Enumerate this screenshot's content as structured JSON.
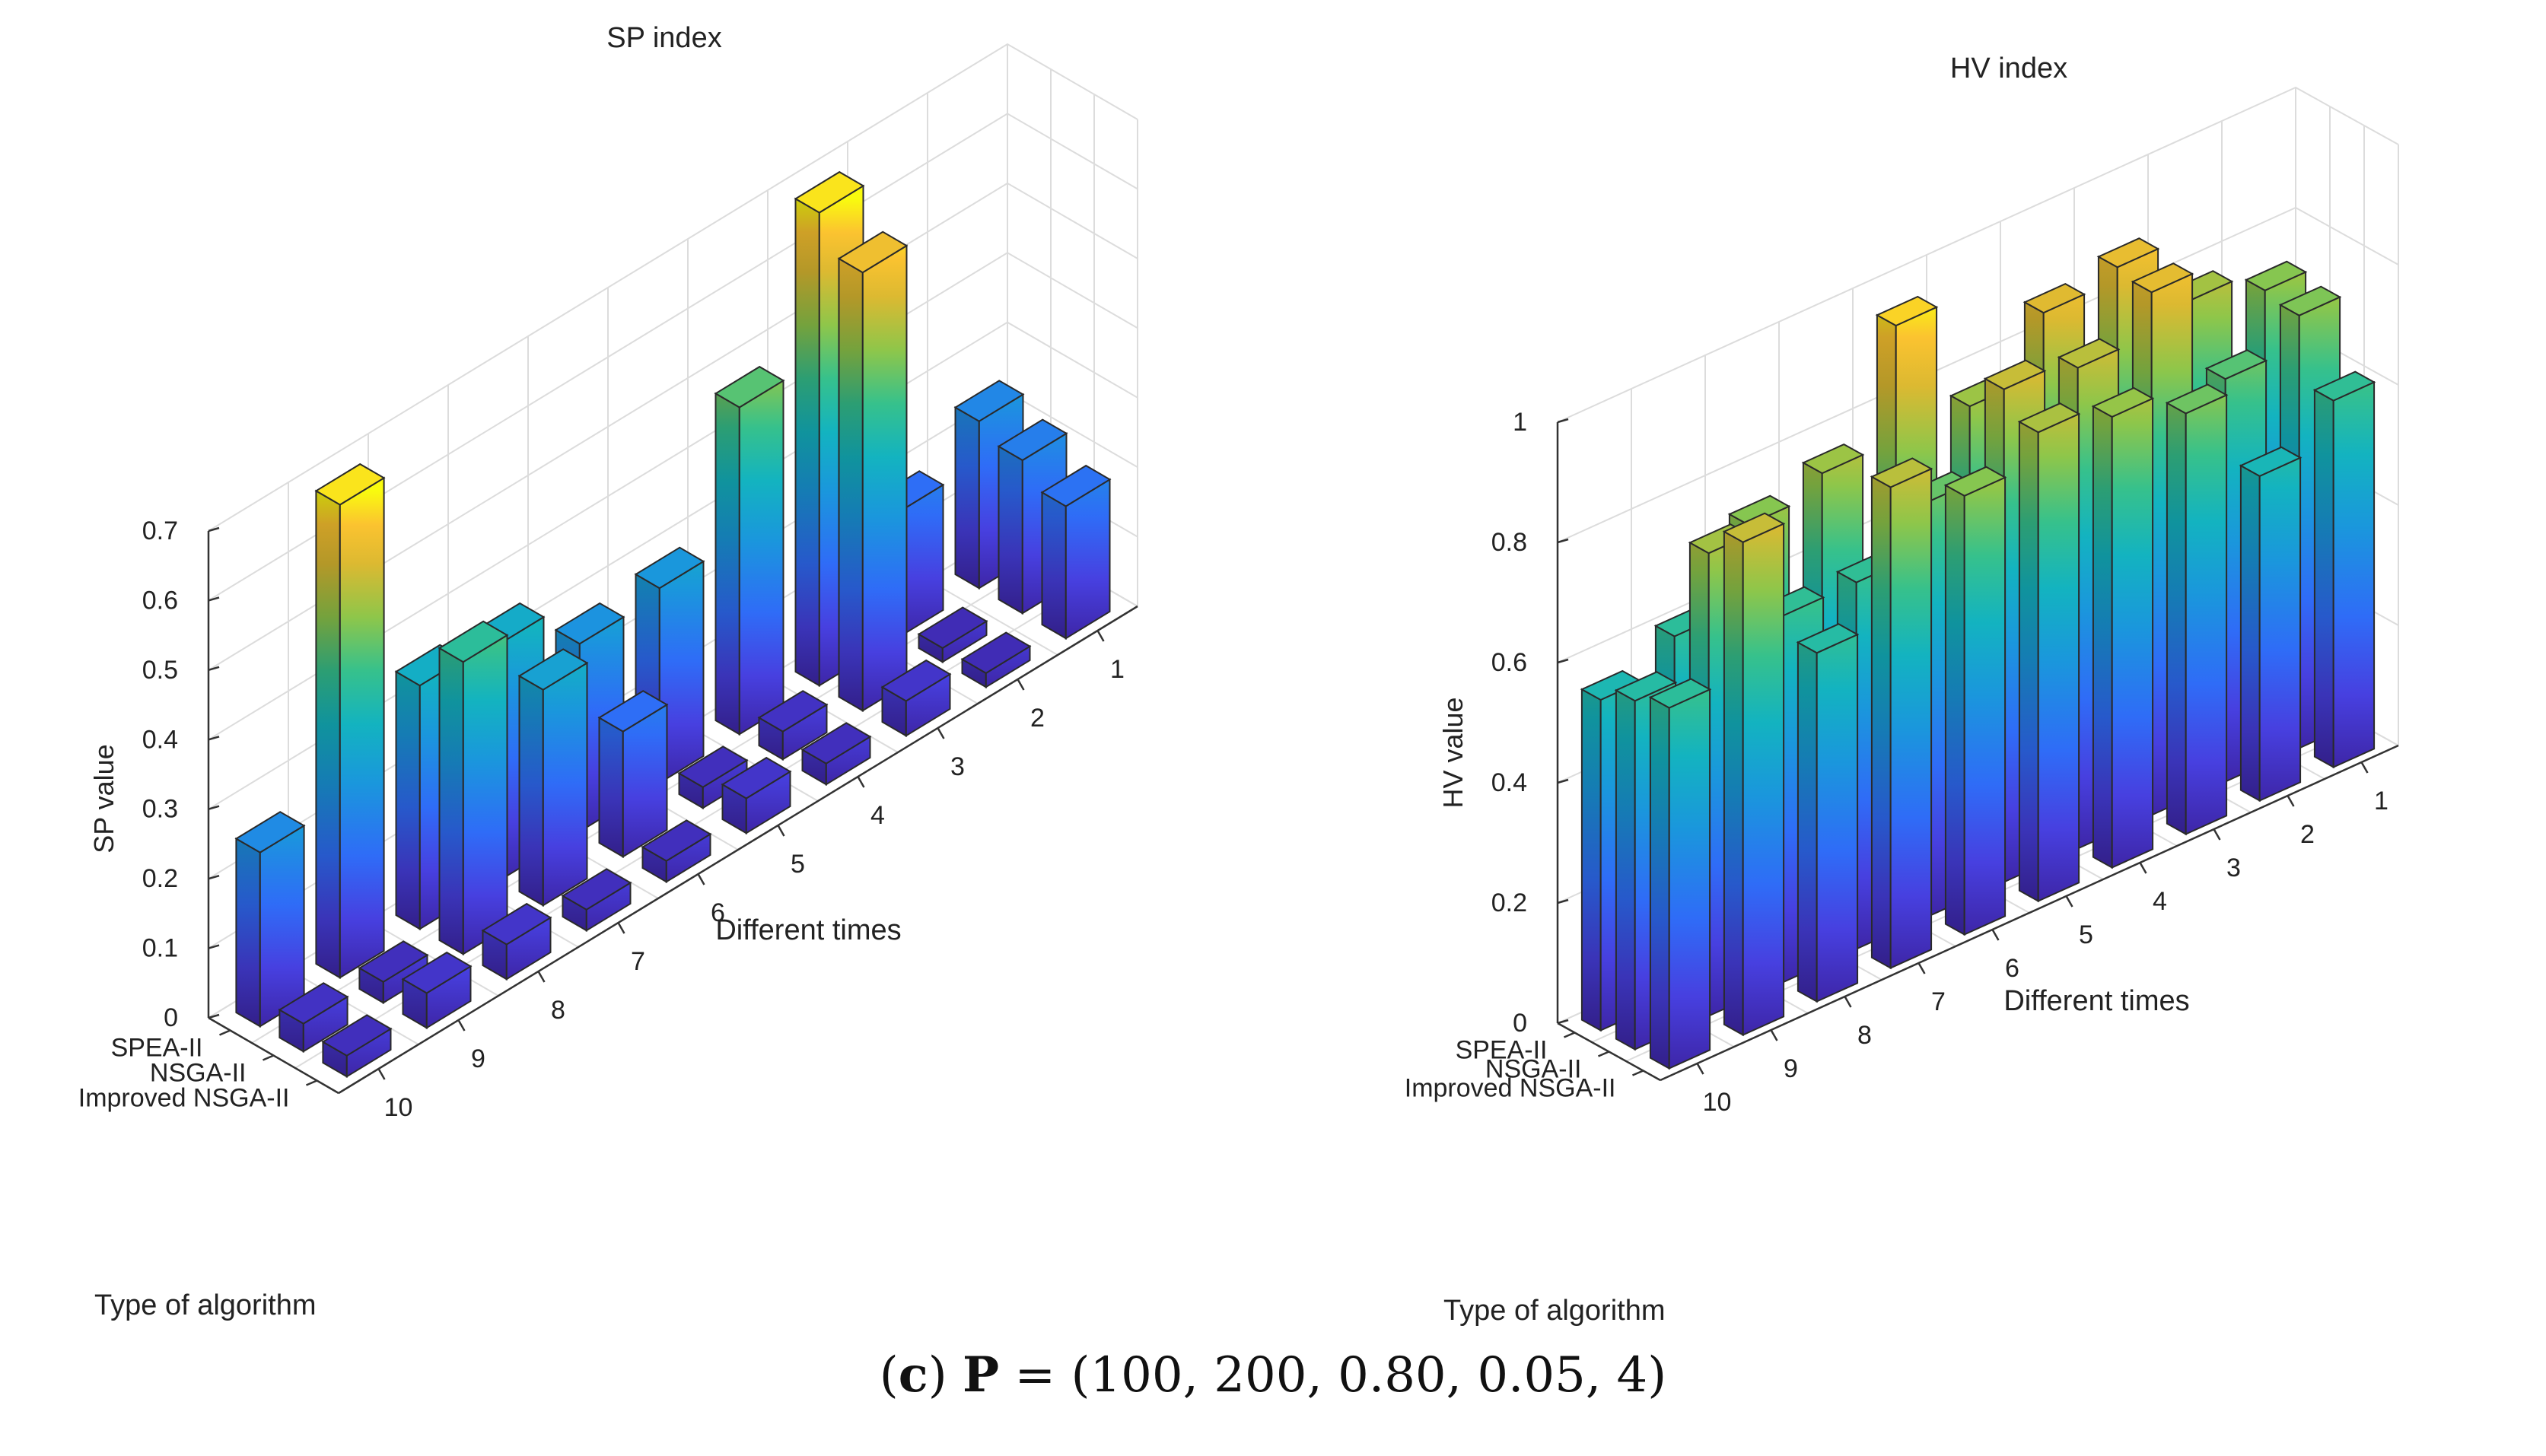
{
  "caption": {
    "label": "c",
    "open": "(",
    "close": ")",
    "param_symbol": "P",
    "equals": " = ",
    "param_values": "(100, 200, 0.80, 0.05, 4)"
  },
  "chart_data": [
    {
      "type": "bar3d",
      "title": "SP index",
      "zlabel": "SP value",
      "xlabel": "Different times",
      "ylabel": "Type of algorithm",
      "zlim": [
        0,
        0.7
      ],
      "zticks": [
        0,
        0.1,
        0.2,
        0.3,
        0.4,
        0.5,
        0.6,
        0.7
      ],
      "times": [
        "1",
        "2",
        "3",
        "4",
        "5",
        "6",
        "7",
        "8",
        "9",
        "10"
      ],
      "algorithms": [
        "SPEA-II",
        "NSGA-II",
        "Improved NSGA-II"
      ],
      "series": [
        {
          "name": "SPEA-II",
          "values": [
            0.24,
            0.18,
            0.68,
            0.47,
            0.28,
            0.27,
            0.34,
            0.35,
            0.68,
            0.25
          ]
        },
        {
          "name": "NSGA-II",
          "values": [
            0.22,
            0.02,
            0.63,
            0.04,
            0.03,
            0.18,
            0.31,
            0.42,
            0.03,
            0.04
          ]
        },
        {
          "name": "Improved NSGA-II",
          "values": [
            0.19,
            0.02,
            0.05,
            0.03,
            0.05,
            0.03,
            0.03,
            0.05,
            0.05,
            0.03
          ]
        }
      ]
    },
    {
      "type": "bar3d",
      "title": "HV index",
      "zlabel": "HV value",
      "xlabel": "Different times",
      "ylabel": "Type of algorithm",
      "zlim": [
        0,
        1
      ],
      "zticks": [
        0,
        0.2,
        0.4,
        0.6,
        0.8,
        1
      ],
      "times": [
        "1",
        "2",
        "3",
        "4",
        "5",
        "6",
        "7",
        "8",
        "9",
        "10"
      ],
      "algorithms": [
        "SPEA-II",
        "NSGA-II",
        "Improved NSGA-II"
      ],
      "series": [
        {
          "name": "SPEA-II",
          "values": [
            0.73,
            0.77,
            0.88,
            0.86,
            0.76,
            0.95,
            0.76,
            0.73,
            0.6,
            0.55
          ]
        },
        {
          "name": "NSGA-II",
          "values": [
            0.72,
            0.67,
            0.87,
            0.8,
            0.82,
            0.69,
            0.61,
            0.61,
            0.77,
            0.58
          ]
        },
        {
          "name": "Improved NSGA-II",
          "values": [
            0.61,
            0.54,
            0.7,
            0.75,
            0.78,
            0.73,
            0.8,
            0.58,
            0.82,
            0.6
          ]
        }
      ]
    }
  ]
}
